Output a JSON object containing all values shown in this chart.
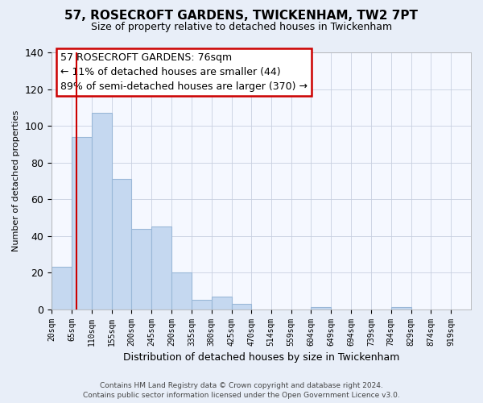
{
  "title": "57, ROSECROFT GARDENS, TWICKENHAM, TW2 7PT",
  "subtitle": "Size of property relative to detached houses in Twickenham",
  "xlabel": "Distribution of detached houses by size in Twickenham",
  "ylabel": "Number of detached properties",
  "bar_edges": [
    20,
    65,
    110,
    155,
    200,
    245,
    290,
    335,
    380,
    425,
    470,
    514,
    559,
    604,
    649,
    694,
    739,
    784,
    829,
    874,
    919,
    964
  ],
  "bar_heights": [
    23,
    94,
    107,
    71,
    44,
    45,
    20,
    5,
    7,
    3,
    0,
    0,
    0,
    1,
    0,
    0,
    0,
    1,
    0,
    0,
    0
  ],
  "bar_color": "#c5d8f0",
  "bar_edgecolor": "#9ab8d8",
  "vline_x": 76,
  "vline_color": "#cc0000",
  "ylim": [
    0,
    140
  ],
  "xlim": [
    20,
    964
  ],
  "annotation_title": "57 ROSECROFT GARDENS: 76sqm",
  "annotation_line1": "← 11% of detached houses are smaller (44)",
  "annotation_line2": "89% of semi-detached houses are larger (370) →",
  "footer1": "Contains HM Land Registry data © Crown copyright and database right 2024.",
  "footer2": "Contains public sector information licensed under the Open Government Licence v3.0.",
  "tick_labels": [
    "20sqm",
    "65sqm",
    "110sqm",
    "155sqm",
    "200sqm",
    "245sqm",
    "290sqm",
    "335sqm",
    "380sqm",
    "425sqm",
    "470sqm",
    "514sqm",
    "559sqm",
    "604sqm",
    "649sqm",
    "694sqm",
    "739sqm",
    "784sqm",
    "829sqm",
    "874sqm",
    "919sqm"
  ],
  "tick_positions": [
    20,
    65,
    110,
    155,
    200,
    245,
    290,
    335,
    380,
    425,
    470,
    514,
    559,
    604,
    649,
    694,
    739,
    784,
    829,
    874,
    919
  ],
  "bg_color": "#e8eef8",
  "plot_bg_color": "#f5f8ff",
  "grid_color": "#c8d0e0",
  "ann_box_color": "#cc0000",
  "title_fontsize": 11,
  "subtitle_fontsize": 9,
  "ann_fontsize": 9,
  "xlabel_fontsize": 9,
  "ylabel_fontsize": 8,
  "ytick_fontsize": 9,
  "xtick_fontsize": 7
}
